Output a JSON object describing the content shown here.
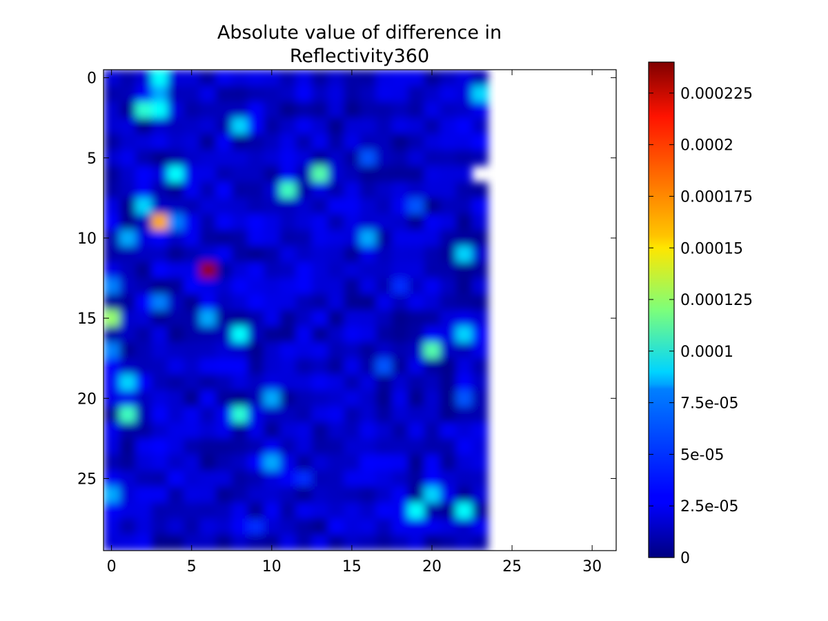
{
  "chart_data": {
    "type": "heatmap",
    "title_lines": [
      "Absolute value of difference in",
      "Reflectivity360"
    ],
    "xlabel": "",
    "ylabel": "",
    "x_ticks": [
      "0",
      "5",
      "10",
      "15",
      "20",
      "25",
      "30"
    ],
    "y_ticks": [
      "0",
      "5",
      "10",
      "15",
      "20",
      "25"
    ],
    "xlim": [
      -0.5,
      31.5
    ],
    "ylim": [
      29.5,
      -0.5
    ],
    "y_axis_inverted": true,
    "n_rows": 30,
    "n_cols": 24,
    "missing_region": "columns 24-31 empty (no data); row 6 col 23 missing",
    "colormap": "jet",
    "interpolation": "smooth",
    "vmin": 0,
    "vmax": 0.00024,
    "colorbar_ticks": [
      "0",
      "2.5e-05",
      "5e-05",
      "7.5e-05",
      "0.0001",
      "0.000125",
      "0.00015",
      "0.000175",
      "0.0002",
      "0.000225"
    ],
    "colorbar_tick_values": [
      0,
      2.5e-05,
      5e-05,
      7.5e-05,
      0.0001,
      0.000125,
      0.00015,
      0.000175,
      0.0002,
      0.000225
    ],
    "grid": false,
    "notable_values": [
      {
        "row": 12,
        "col": 6,
        "value": 0.000235
      },
      {
        "row": 9,
        "col": 3,
        "value": 0.00017
      },
      {
        "row": 15,
        "col": 0,
        "value": 0.000125
      },
      {
        "row": 17,
        "col": 20,
        "value": 0.00011
      },
      {
        "row": 6,
        "col": 13,
        "value": 0.00011
      },
      {
        "row": 7,
        "col": 11,
        "value": 0.000105
      },
      {
        "row": 21,
        "col": 1,
        "value": 0.000105
      },
      {
        "row": 2,
        "col": 2,
        "value": 0.0001
      },
      {
        "row": 2,
        "col": 3,
        "value": 9e-05
      },
      {
        "row": 0,
        "col": 3,
        "value": 9e-05
      },
      {
        "row": 1,
        "col": 3,
        "value": 7e-05
      },
      {
        "row": 8,
        "col": 2,
        "value": 8e-05
      },
      {
        "row": 9,
        "col": 4,
        "value": 6e-05
      },
      {
        "row": 6,
        "col": 4,
        "value": 9e-05
      },
      {
        "row": 10,
        "col": 1,
        "value": 7e-05
      },
      {
        "row": 3,
        "col": 8,
        "value": 8e-05
      },
      {
        "row": 1,
        "col": 23,
        "value": 8e-05
      },
      {
        "row": 10,
        "col": 16,
        "value": 7e-05
      },
      {
        "row": 11,
        "col": 22,
        "value": 8e-05
      },
      {
        "row": 13,
        "col": 0,
        "value": 6e-05
      },
      {
        "row": 14,
        "col": 3,
        "value": 6e-05
      },
      {
        "row": 15,
        "col": 6,
        "value": 7e-05
      },
      {
        "row": 16,
        "col": 8,
        "value": 9e-05
      },
      {
        "row": 16,
        "col": 22,
        "value": 8e-05
      },
      {
        "row": 17,
        "col": 0,
        "value": 6e-05
      },
      {
        "row": 19,
        "col": 1,
        "value": 8e-05
      },
      {
        "row": 20,
        "col": 10,
        "value": 7e-05
      },
      {
        "row": 21,
        "col": 8,
        "value": 0.0001
      },
      {
        "row": 24,
        "col": 10,
        "value": 7e-05
      },
      {
        "row": 26,
        "col": 0,
        "value": 7e-05
      },
      {
        "row": 26,
        "col": 20,
        "value": 8e-05
      },
      {
        "row": 27,
        "col": 19,
        "value": 9e-05
      },
      {
        "row": 27,
        "col": 22,
        "value": 9e-05
      },
      {
        "row": 5,
        "col": 16,
        "value": 5e-05
      },
      {
        "row": 8,
        "col": 19,
        "value": 5e-05
      },
      {
        "row": 13,
        "col": 18,
        "value": 4e-05
      },
      {
        "row": 18,
        "col": 17,
        "value": 5e-05
      },
      {
        "row": 20,
        "col": 22,
        "value": 5e-05
      },
      {
        "row": 25,
        "col": 12,
        "value": 4e-05
      },
      {
        "row": 28,
        "col": 9,
        "value": 4e-05
      }
    ],
    "background_range": [
      3e-06,
      3e-05
    ]
  }
}
